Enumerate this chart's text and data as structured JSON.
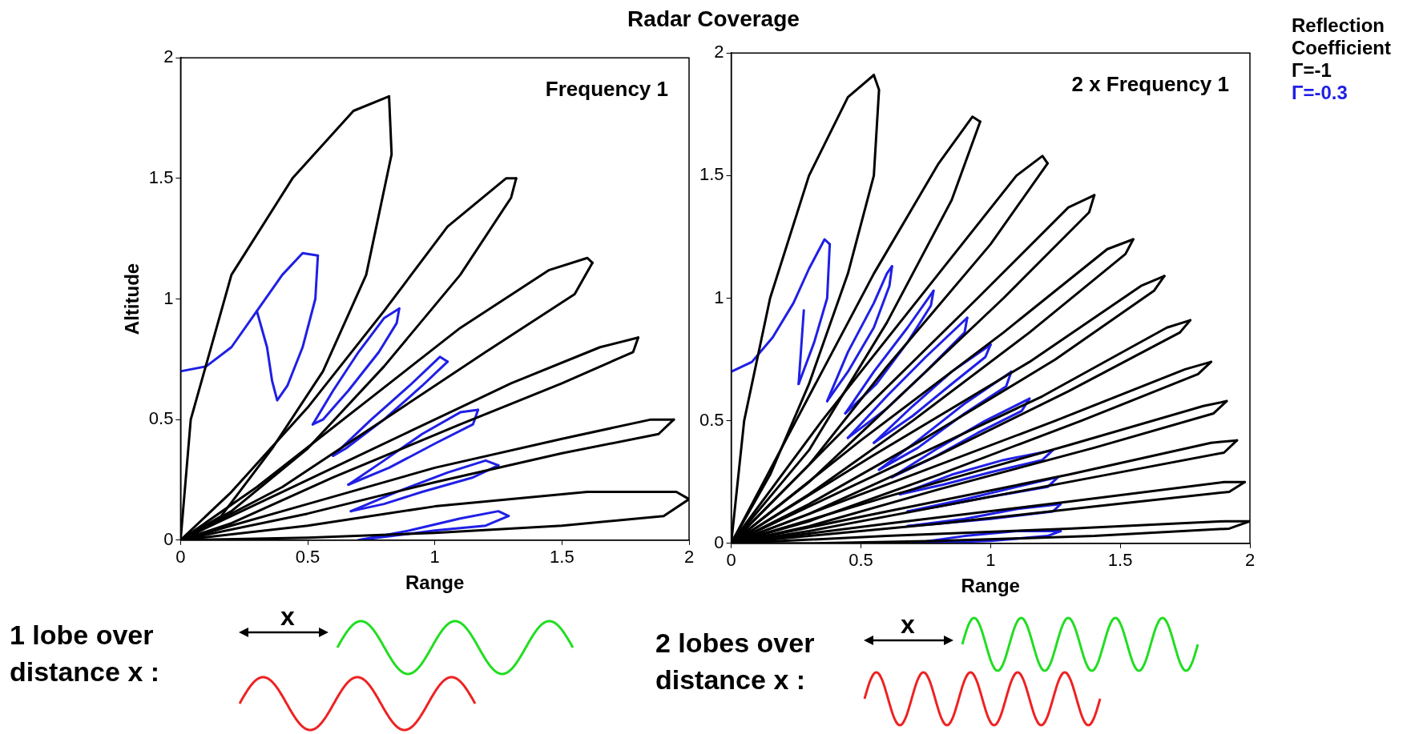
{
  "chart_data": [
    {
      "type": "line",
      "title": "Radar Coverage",
      "xlabel": "Range",
      "ylabel": "Altitude",
      "xlim": [
        0,
        2
      ],
      "ylim": [
        0,
        2
      ],
      "xticks": [
        0,
        0.5,
        1,
        1.5,
        2
      ],
      "yticks": [
        0,
        0.5,
        1,
        1.5,
        2
      ],
      "grid": false,
      "legend": false,
      "marker": "none",
      "line_style": "solid",
      "annotations": [
        "Frequency 1",
        "x",
        "1 lobe over distance x :"
      ],
      "series": [
        {
          "color": "#000000",
          "x": [
            0,
            0.04,
            0.2,
            0.44,
            0.68,
            0.82
          ],
          "values": [
            0,
            0.5,
            1.1,
            1.5,
            1.78,
            1.84
          ]
        },
        {
          "color": "#000000",
          "x": [
            0.82,
            0.83,
            0.73,
            0.56,
            0.36,
            0.16,
            0
          ],
          "values": [
            1.84,
            1.6,
            1.1,
            0.7,
            0.38,
            0.1,
            0
          ]
        },
        {
          "color": "#000000",
          "x": [
            0,
            0.2,
            0.5,
            0.8,
            1.05,
            1.28,
            1.32
          ],
          "values": [
            0,
            0.2,
            0.55,
            0.95,
            1.3,
            1.5,
            1.5
          ]
        },
        {
          "color": "#000000",
          "x": [
            1.32,
            1.3,
            1.1,
            0.8,
            0.5,
            0.2,
            0
          ],
          "values": [
            1.5,
            1.42,
            1.1,
            0.72,
            0.38,
            0.12,
            0
          ]
        },
        {
          "color": "#000000",
          "x": [
            0,
            0.3,
            0.7,
            1.1,
            1.45,
            1.6,
            1.62
          ],
          "values": [
            0,
            0.22,
            0.55,
            0.88,
            1.12,
            1.17,
            1.15
          ]
        },
        {
          "color": "#000000",
          "x": [
            1.62,
            1.55,
            1.2,
            0.8,
            0.4,
            0
          ],
          "values": [
            1.15,
            1.02,
            0.78,
            0.5,
            0.22,
            0
          ]
        },
        {
          "color": "#000000",
          "x": [
            0,
            0.4,
            0.9,
            1.3,
            1.65,
            1.8
          ],
          "values": [
            0,
            0.2,
            0.45,
            0.65,
            0.8,
            0.84
          ]
        },
        {
          "color": "#000000",
          "x": [
            1.8,
            1.78,
            1.5,
            1.1,
            0.6,
            0.2,
            0
          ],
          "values": [
            0.84,
            0.78,
            0.65,
            0.48,
            0.26,
            0.07,
            0
          ]
        },
        {
          "color": "#000000",
          "x": [
            0,
            0.5,
            1,
            1.5,
            1.85,
            1.94
          ],
          "values": [
            0,
            0.15,
            0.3,
            0.42,
            0.5,
            0.5
          ]
        },
        {
          "color": "#000000",
          "x": [
            1.94,
            1.88,
            1.5,
            1,
            0.5,
            0
          ],
          "values": [
            0.5,
            0.44,
            0.36,
            0.24,
            0.11,
            0
          ]
        },
        {
          "color": "#000000",
          "x": [
            0,
            0.5,
            1,
            1.6,
            1.95,
            2
          ],
          "values": [
            0,
            0.06,
            0.14,
            0.2,
            0.2,
            0.17
          ]
        },
        {
          "color": "#000000",
          "x": [
            2,
            1.9,
            1.5,
            1,
            0.5,
            0
          ],
          "values": [
            0.17,
            0.1,
            0.06,
            0.03,
            0.01,
            0
          ]
        },
        {
          "color": "#1f1fe6",
          "x": [
            0,
            0.1,
            0.2,
            0.3,
            0.4,
            0.48,
            0.54
          ],
          "values": [
            0.7,
            0.72,
            0.8,
            0.95,
            1.1,
            1.19,
            1.18
          ]
        },
        {
          "color": "#1f1fe6",
          "x": [
            0.54,
            0.53,
            0.48,
            0.42,
            0.38,
            0.36,
            0.34,
            0.3
          ],
          "values": [
            1.18,
            1,
            0.8,
            0.64,
            0.58,
            0.66,
            0.8,
            0.95
          ]
        },
        {
          "color": "#1f1fe6",
          "x": [
            0.52,
            0.6,
            0.7,
            0.8,
            0.86
          ],
          "values": [
            0.48,
            0.62,
            0.78,
            0.92,
            0.96
          ]
        },
        {
          "color": "#1f1fe6",
          "x": [
            0.86,
            0.85,
            0.78,
            0.66,
            0.56,
            0.52
          ],
          "values": [
            0.96,
            0.9,
            0.78,
            0.62,
            0.5,
            0.48
          ]
        },
        {
          "color": "#1f1fe6",
          "x": [
            0.6,
            0.75,
            0.9,
            1.02,
            1.05
          ],
          "values": [
            0.35,
            0.5,
            0.64,
            0.76,
            0.74
          ]
        },
        {
          "color": "#1f1fe6",
          "x": [
            1.05,
            0.95,
            0.8,
            0.65,
            0.6
          ],
          "values": [
            0.74,
            0.64,
            0.5,
            0.38,
            0.35
          ]
        },
        {
          "color": "#1f1fe6",
          "x": [
            0.66,
            0.8,
            0.95,
            1.1,
            1.17
          ],
          "values": [
            0.23,
            0.33,
            0.44,
            0.53,
            0.54
          ]
        },
        {
          "color": "#1f1fe6",
          "x": [
            1.17,
            1.15,
            1,
            0.82,
            0.66
          ],
          "values": [
            0.54,
            0.48,
            0.4,
            0.3,
            0.23
          ]
        },
        {
          "color": "#1f1fe6",
          "x": [
            0.67,
            0.85,
            1.05,
            1.2,
            1.25
          ],
          "values": [
            0.12,
            0.2,
            0.28,
            0.33,
            0.31
          ]
        },
        {
          "color": "#1f1fe6",
          "x": [
            1.25,
            1.15,
            0.95,
            0.8,
            0.67
          ],
          "values": [
            0.31,
            0.26,
            0.2,
            0.15,
            0.12
          ]
        },
        {
          "color": "#1f1fe6",
          "x": [
            0.7,
            0.9,
            1.1,
            1.25,
            1.29
          ],
          "values": [
            0,
            0.04,
            0.09,
            0.12,
            0.1
          ]
        },
        {
          "color": "#1f1fe6",
          "x": [
            1.29,
            1.2,
            1,
            0.85,
            0.7
          ],
          "values": [
            0.1,
            0.06,
            0.04,
            0.02,
            0
          ]
        }
      ]
    },
    {
      "type": "line",
      "xlabel": "Range",
      "xlim": [
        0,
        2
      ],
      "ylim": [
        0,
        2
      ],
      "xticks": [
        0,
        0.5,
        1,
        1.5,
        2
      ],
      "yticks": [
        0,
        0.5,
        1,
        1.5,
        2
      ],
      "grid": false,
      "legend": "top right",
      "legend_title": "Reflection Coefficient",
      "marker": "none",
      "line_style": "solid",
      "annotations": [
        "2 x Frequency 1",
        "x",
        "2 lobes over distance x :"
      ],
      "series": [
        {
          "name": "Γ=-1",
          "color": "#000000",
          "x": [
            0,
            0.05,
            0.15,
            0.3,
            0.45,
            0.55
          ],
          "values": [
            0,
            0.5,
            1,
            1.5,
            1.82,
            1.91
          ]
        },
        {
          "color": "#000000",
          "x": [
            0.55,
            0.57,
            0.55,
            0.45,
            0.3,
            0.15,
            0
          ],
          "values": [
            1.91,
            1.85,
            1.5,
            1.1,
            0.65,
            0.28,
            0
          ]
        },
        {
          "color": "#000000",
          "x": [
            0,
            0.25,
            0.55,
            0.8,
            0.93,
            0.96
          ],
          "values": [
            0,
            0.5,
            1.1,
            1.55,
            1.74,
            1.72
          ]
        },
        {
          "color": "#000000",
          "x": [
            0.96,
            0.85,
            0.6,
            0.3,
            0
          ],
          "values": [
            1.72,
            1.4,
            0.9,
            0.38,
            0
          ]
        },
        {
          "color": "#000000",
          "x": [
            0,
            0.35,
            0.8,
            1.1,
            1.2,
            1.22
          ],
          "values": [
            0,
            0.5,
            1.1,
            1.5,
            1.58,
            1.55
          ]
        },
        {
          "color": "#000000",
          "x": [
            1.22,
            1,
            0.6,
            0.3,
            0
          ],
          "values": [
            1.55,
            1.22,
            0.72,
            0.32,
            0
          ]
        },
        {
          "color": "#000000",
          "x": [
            0,
            0.45,
            0.95,
            1.3,
            1.4
          ],
          "values": [
            0,
            0.48,
            1,
            1.37,
            1.42
          ]
        },
        {
          "color": "#000000",
          "x": [
            1.4,
            1.38,
            1.05,
            0.6,
            0.3,
            0
          ],
          "values": [
            1.42,
            1.35,
            1,
            0.55,
            0.25,
            0
          ]
        },
        {
          "color": "#000000",
          "x": [
            0,
            0.5,
            1.05,
            1.45,
            1.55
          ],
          "values": [
            0,
            0.42,
            0.86,
            1.2,
            1.24
          ]
        },
        {
          "color": "#000000",
          "x": [
            1.55,
            1.52,
            1.15,
            0.7,
            0.3,
            0
          ],
          "values": [
            1.24,
            1.18,
            0.86,
            0.5,
            0.2,
            0
          ]
        },
        {
          "color": "#000000",
          "x": [
            0,
            0.55,
            1.15,
            1.58,
            1.67
          ],
          "values": [
            0,
            0.36,
            0.74,
            1.05,
            1.09
          ]
        },
        {
          "color": "#000000",
          "x": [
            1.67,
            1.63,
            1.25,
            0.75,
            0.3,
            0
          ],
          "values": [
            1.09,
            1.03,
            0.75,
            0.43,
            0.16,
            0
          ]
        },
        {
          "color": "#000000",
          "x": [
            0,
            0.6,
            1.2,
            1.68,
            1.77
          ],
          "values": [
            0,
            0.3,
            0.6,
            0.88,
            0.91
          ]
        },
        {
          "color": "#000000",
          "x": [
            1.77,
            1.73,
            1.3,
            0.8,
            0.3,
            0
          ],
          "values": [
            0.91,
            0.86,
            0.62,
            0.36,
            0.12,
            0
          ]
        },
        {
          "color": "#000000",
          "x": [
            0,
            0.6,
            1.25,
            1.75,
            1.85
          ],
          "values": [
            0,
            0.24,
            0.5,
            0.71,
            0.74
          ]
        },
        {
          "color": "#000000",
          "x": [
            1.85,
            1.8,
            1.35,
            0.8,
            0.3,
            0
          ],
          "values": [
            0.74,
            0.69,
            0.5,
            0.28,
            0.09,
            0
          ]
        },
        {
          "color": "#000000",
          "x": [
            0,
            0.6,
            1.3,
            1.82,
            1.91
          ],
          "values": [
            0,
            0.19,
            0.4,
            0.56,
            0.58
          ]
        },
        {
          "color": "#000000",
          "x": [
            1.91,
            1.86,
            1.4,
            0.8,
            0.3,
            0
          ],
          "values": [
            0.58,
            0.53,
            0.39,
            0.22,
            0.07,
            0
          ]
        },
        {
          "color": "#000000",
          "x": [
            0,
            0.6,
            1.3,
            1.85,
            1.95
          ],
          "values": [
            0,
            0.13,
            0.28,
            0.41,
            0.42
          ]
        },
        {
          "color": "#000000",
          "x": [
            1.95,
            1.9,
            1.4,
            0.8,
            0.3,
            0
          ],
          "values": [
            0.42,
            0.37,
            0.27,
            0.15,
            0.05,
            0
          ]
        },
        {
          "color": "#000000",
          "x": [
            0,
            0.6,
            1.3,
            1.9,
            1.98
          ],
          "values": [
            0,
            0.08,
            0.17,
            0.25,
            0.25
          ]
        },
        {
          "color": "#000000",
          "x": [
            1.98,
            1.92,
            1.4,
            0.8,
            0.3,
            0
          ],
          "values": [
            0.25,
            0.21,
            0.15,
            0.08,
            0.03,
            0
          ]
        },
        {
          "color": "#000000",
          "x": [
            0,
            0.6,
            1.3,
            1.9,
            2
          ],
          "values": [
            0,
            0.03,
            0.06,
            0.09,
            0.09
          ]
        },
        {
          "color": "#000000",
          "x": [
            2,
            1.92,
            1.4,
            0.8,
            0.3,
            0
          ],
          "values": [
            0.09,
            0.06,
            0.03,
            0.01,
            0,
            0
          ]
        },
        {
          "name": "Γ=-0.3",
          "color": "#1f1fe6",
          "x": [
            0,
            0.08,
            0.16,
            0.24,
            0.3,
            0.36,
            0.38
          ],
          "values": [
            0.7,
            0.74,
            0.84,
            0.98,
            1.12,
            1.24,
            1.22
          ]
        },
        {
          "color": "#1f1fe6",
          "x": [
            0.38,
            0.37,
            0.32,
            0.26
          ],
          "values": [
            1.22,
            1,
            0.82,
            0.65
          ]
        },
        {
          "color": "#1f1fe6",
          "x": [
            0.26,
            0.27,
            0.28
          ],
          "values": [
            0.65,
            0.8,
            0.95
          ]
        },
        {
          "color": "#1f1fe6",
          "x": [
            0.37,
            0.45,
            0.55,
            0.6,
            0.62
          ],
          "values": [
            0.58,
            0.78,
            0.98,
            1.1,
            1.13
          ]
        },
        {
          "color": "#1f1fe6",
          "x": [
            0.62,
            0.61,
            0.55,
            0.45,
            0.37
          ],
          "values": [
            1.13,
            1.05,
            0.88,
            0.7,
            0.58
          ]
        },
        {
          "color": "#1f1fe6",
          "x": [
            0.44,
            0.55,
            0.68,
            0.78
          ],
          "values": [
            0.53,
            0.7,
            0.88,
            1.03
          ]
        },
        {
          "color": "#1f1fe6",
          "x": [
            0.78,
            0.77,
            0.68,
            0.56,
            0.44
          ],
          "values": [
            1.03,
            0.97,
            0.82,
            0.65,
            0.53
          ]
        },
        {
          "color": "#1f1fe6",
          "x": [
            0.45,
            0.6,
            0.75,
            0.91
          ],
          "values": [
            0.43,
            0.6,
            0.76,
            0.92
          ]
        },
        {
          "color": "#1f1fe6",
          "x": [
            0.91,
            0.9,
            0.75,
            0.6,
            0.45
          ],
          "values": [
            0.92,
            0.86,
            0.7,
            0.55,
            0.43
          ]
        },
        {
          "color": "#1f1fe6",
          "x": [
            0.55,
            0.7,
            0.85,
            1
          ],
          "values": [
            0.41,
            0.56,
            0.7,
            0.81
          ]
        },
        {
          "color": "#1f1fe6",
          "x": [
            1,
            0.98,
            0.85,
            0.7,
            0.55
          ],
          "values": [
            0.81,
            0.76,
            0.65,
            0.52,
            0.41
          ]
        },
        {
          "color": "#1f1fe6",
          "x": [
            0.57,
            0.72,
            0.9,
            1.08
          ],
          "values": [
            0.3,
            0.42,
            0.57,
            0.7
          ]
        },
        {
          "color": "#1f1fe6",
          "x": [
            1.08,
            1.06,
            0.9,
            0.72,
            0.57
          ],
          "values": [
            0.7,
            0.64,
            0.53,
            0.39,
            0.3
          ]
        },
        {
          "color": "#1f1fe6",
          "x": [
            0.62,
            0.8,
            0.98,
            1.15
          ],
          "values": [
            0.27,
            0.39,
            0.5,
            0.59
          ]
        },
        {
          "color": "#1f1fe6",
          "x": [
            1.15,
            1.12,
            0.95,
            0.78,
            0.62
          ],
          "values": [
            0.59,
            0.54,
            0.45,
            0.35,
            0.27
          ]
        },
        {
          "color": "#1f1fe6",
          "x": [
            0.65,
            0.85,
            1.05,
            1.24
          ],
          "values": [
            0.2,
            0.28,
            0.34,
            0.38
          ]
        },
        {
          "color": "#1f1fe6",
          "x": [
            1.24,
            1.2,
            1,
            0.82,
            0.65
          ],
          "values": [
            0.38,
            0.34,
            0.29,
            0.24,
            0.2
          ]
        },
        {
          "color": "#1f1fe6",
          "x": [
            0.68,
            0.9,
            1.1,
            1.26
          ],
          "values": [
            0.13,
            0.18,
            0.23,
            0.27
          ]
        },
        {
          "color": "#1f1fe6",
          "x": [
            1.26,
            1.22,
            1,
            0.8,
            0.68
          ],
          "values": [
            0.27,
            0.23,
            0.19,
            0.15,
            0.13
          ]
        },
        {
          "color": "#1f1fe6",
          "x": [
            0.68,
            0.9,
            1.1,
            1.27
          ],
          "values": [
            0.07,
            0.1,
            0.14,
            0.16
          ]
        },
        {
          "color": "#1f1fe6",
          "x": [
            1.27,
            1.24,
            1,
            0.8,
            0.68
          ],
          "values": [
            0.16,
            0.13,
            0.1,
            0.08,
            0.07
          ]
        },
        {
          "color": "#1f1fe6",
          "x": [
            0.7,
            0.9,
            1.1,
            1.27
          ],
          "values": [
            0,
            0.03,
            0.05,
            0.05
          ]
        },
        {
          "color": "#1f1fe6",
          "x": [
            1.27,
            1.22,
            1,
            0.7
          ],
          "values": [
            0.05,
            0.03,
            0.01,
            0
          ]
        }
      ]
    }
  ]
}
